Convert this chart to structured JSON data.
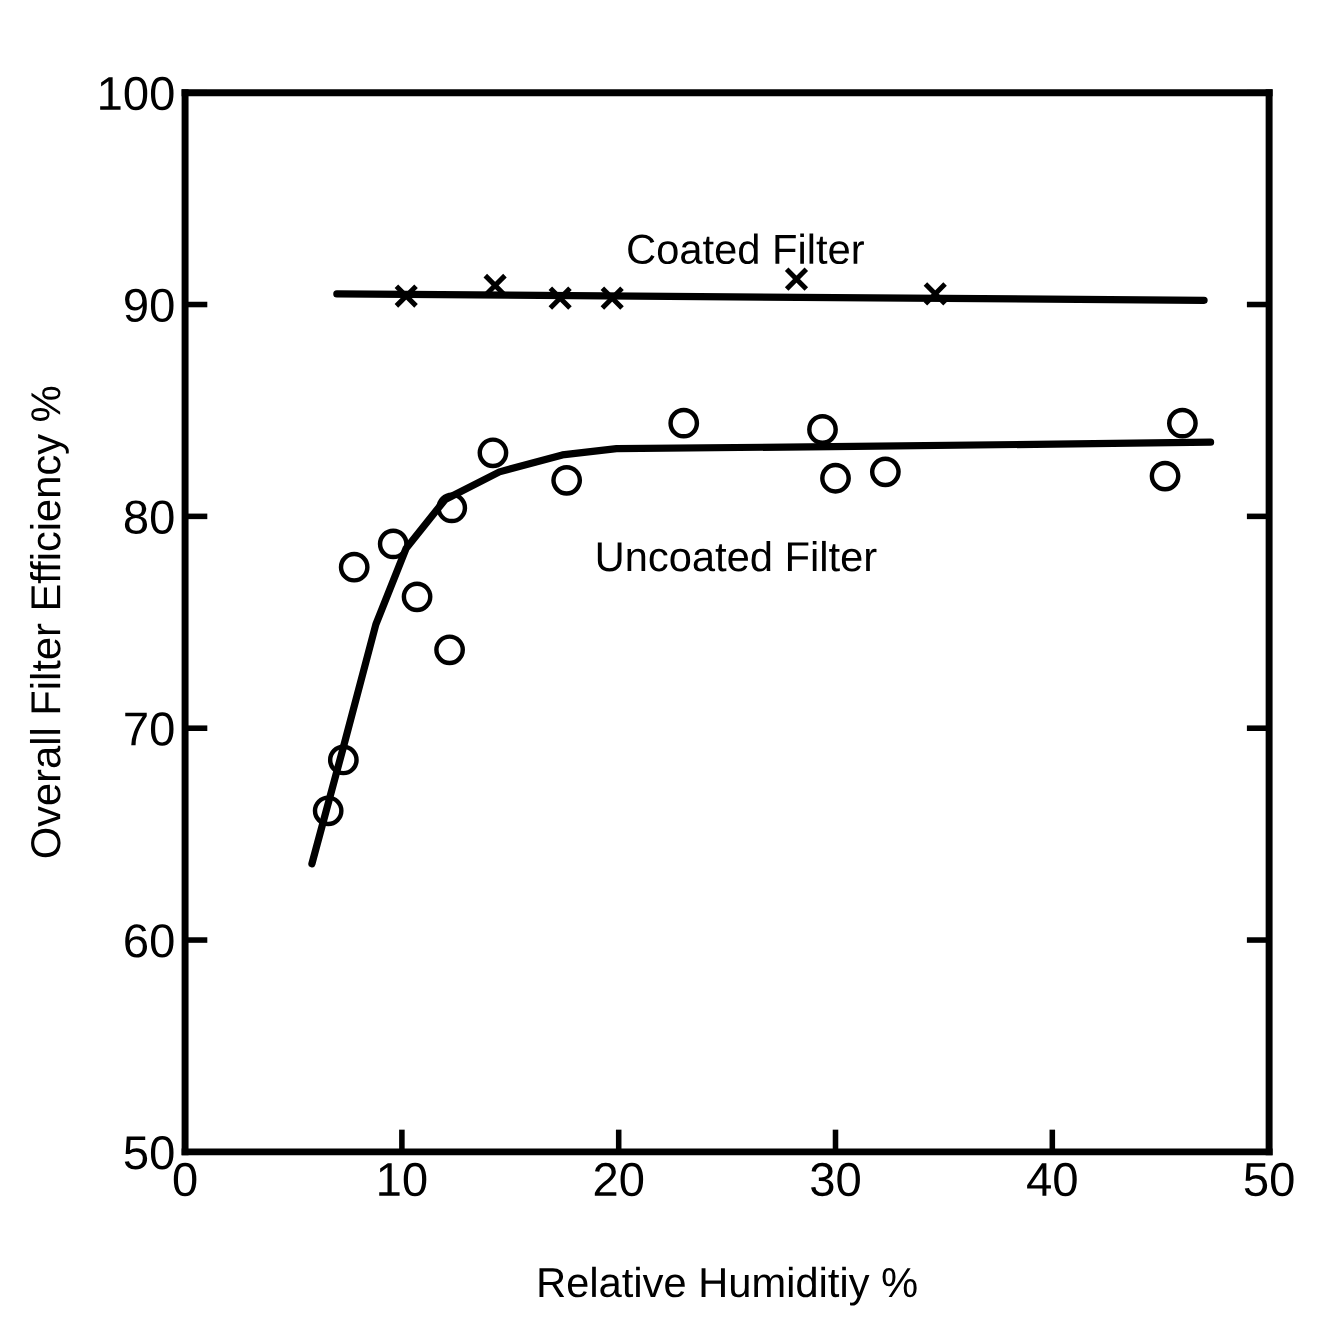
{
  "chart_data": {
    "type": "scatter",
    "xlabel": "Relative Humiditiy %",
    "ylabel": "Overall Filter Efficiency %",
    "xlim": [
      0,
      50
    ],
    "ylim": [
      50,
      100
    ],
    "xticks": [
      0,
      10,
      20,
      30,
      40,
      50
    ],
    "yticks": [
      50,
      60,
      70,
      80,
      90,
      100
    ],
    "grid": false,
    "legend": false,
    "series": [
      {
        "name": "Coated Filter",
        "marker": "cross",
        "color": "#000000",
        "x": [
          10.2,
          14.3,
          17.3,
          19.7,
          28.2,
          34.6
        ],
        "values": [
          90.4,
          90.9,
          90.3,
          90.3,
          91.2,
          90.5
        ]
      },
      {
        "name": "Uncoated Filter",
        "marker": "circle",
        "color": "#000000",
        "x": [
          6.6,
          7.3,
          7.8,
          9.6,
          10.7,
          12.2,
          12.3,
          14.2,
          17.6,
          23.0,
          29.4,
          30.0,
          32.3,
          45.2,
          46.0
        ],
        "values": [
          66.1,
          68.5,
          77.6,
          78.7,
          76.2,
          73.7,
          80.4,
          83.0,
          81.7,
          84.4,
          84.1,
          81.8,
          82.1,
          81.9,
          84.4
        ]
      },
      {
        "type": "line",
        "color": "#000000",
        "x": [
          7.0,
          47.0
        ],
        "values": [
          90.5,
          90.2
        ]
      },
      {
        "type": "line",
        "color": "#000000",
        "x": [
          5.85,
          7.3,
          8.8,
          10.2,
          12.0,
          14.5,
          17.4,
          19.9,
          30.9,
          47.3
        ],
        "values": [
          63.6,
          69.1,
          74.9,
          78.5,
          80.8,
          82.1,
          82.9,
          83.2,
          83.3,
          83.5
        ]
      }
    ]
  }
}
